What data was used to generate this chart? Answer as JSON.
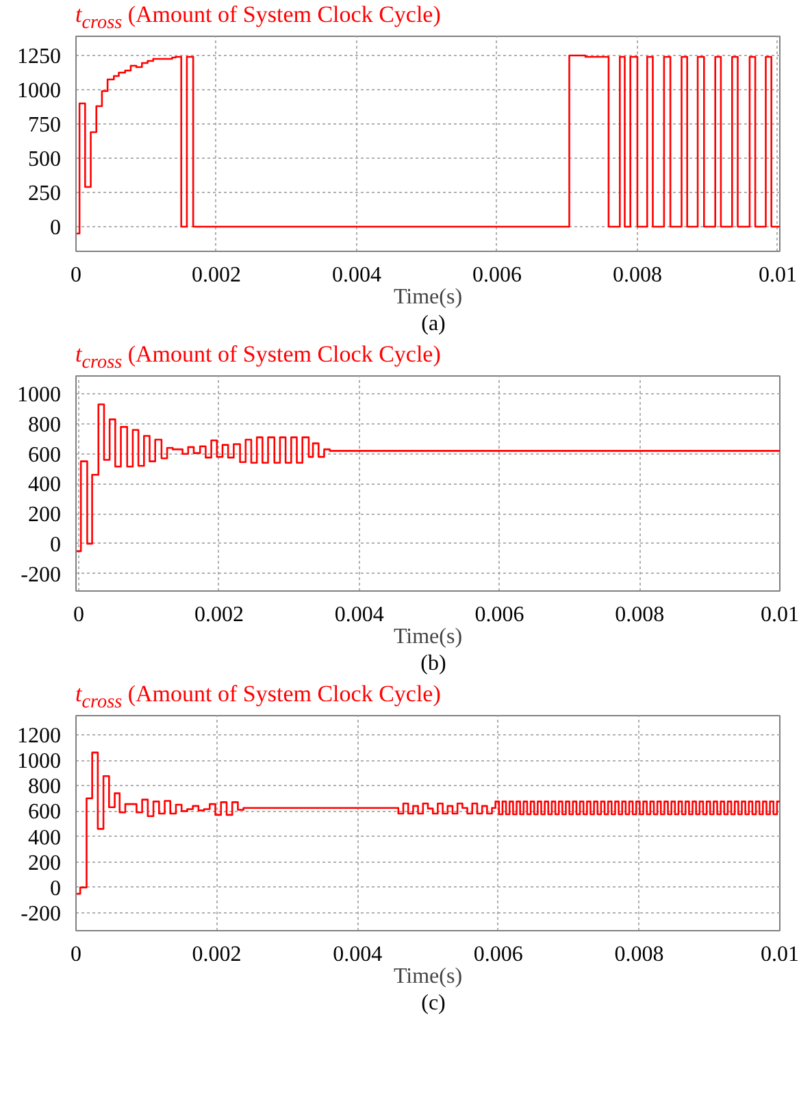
{
  "chart_data": [
    {
      "type": "step",
      "title": "t$_{cross}$ (Amount of System Clock Cycle)",
      "xlabel": "Time(s)",
      "annotations": [
        "(a)"
      ],
      "xlim": [
        0,
        0.01003
      ],
      "ylim": [
        -180,
        1390
      ],
      "xticks": [
        0,
        0.002,
        0.004,
        0.006,
        0.008,
        0.01
      ],
      "yticks": [
        0,
        250,
        500,
        750,
        1000,
        1250
      ],
      "grid": true,
      "series": [
        {
          "color": "#ff0000",
          "x": [
            0,
            5e-05,
            0.00013,
            0.00021,
            0.00029,
            0.00037,
            0.00045,
            0.00054,
            0.00061,
            0.0007,
            0.00078,
            0.00086,
            0.00094,
            0.00102,
            0.0011,
            0.00137,
            0.00142,
            0.0015,
            0.00158,
            0.00167,
            0.00703,
            0.00726,
            0.00759,
            0.00775,
            0.00782,
            0.0079,
            0.008,
            0.00814,
            0.00822,
            0.00838,
            0.00847,
            0.00863,
            0.00871,
            0.00886,
            0.00895,
            0.00911,
            0.00919,
            0.00935,
            0.00943,
            0.0096,
            0.00968,
            0.00983,
            0.00991,
            0.01003
          ],
          "values": [
            -50,
            900,
            290,
            690,
            880,
            990,
            1075,
            1100,
            1125,
            1140,
            1175,
            1165,
            1195,
            1210,
            1225,
            1235,
            1240,
            0,
            1240,
            0,
            1250,
            1240,
            0,
            1240,
            0,
            1240,
            0,
            1240,
            0,
            1240,
            0,
            1240,
            0,
            1240,
            0,
            1240,
            0,
            1240,
            0,
            1240,
            0,
            1240,
            0,
            0
          ]
        }
      ]
    },
    {
      "type": "step",
      "title": "t$_{cross}$ (Amount of System Clock Cycle)",
      "xlabel": "Time(s)",
      "annotations": [
        "(b)"
      ],
      "xlim": [
        -4e-05,
        0.01
      ],
      "ylim": [
        -316,
        1120
      ],
      "xticks": [
        0,
        0.002,
        0.004,
        0.006,
        0.008,
        0.01
      ],
      "yticks": [
        -200,
        0,
        200,
        400,
        600,
        800,
        1000
      ],
      "grid": true,
      "series": [
        {
          "color": "#ff0000",
          "x": [
            -4e-05,
            3e-05,
            0.00012,
            0.00019,
            0.00028,
            0.00036,
            0.00044,
            0.00052,
            0.0006,
            0.00069,
            0.00077,
            0.00085,
            0.00093,
            0.00101,
            0.00109,
            0.00118,
            0.00126,
            0.00134,
            0.00148,
            0.00156,
            0.00164,
            0.00173,
            0.00181,
            0.00189,
            0.00197,
            0.00205,
            0.00213,
            0.00221,
            0.0023,
            0.00238,
            0.00246,
            0.00254,
            0.00262,
            0.0027,
            0.00279,
            0.00287,
            0.00295,
            0.00303,
            0.00311,
            0.00319,
            0.00328,
            0.00334,
            0.00342,
            0.0035,
            0.00358,
            0.01
          ],
          "values": [
            -50,
            550,
            0,
            460,
            930,
            560,
            830,
            515,
            780,
            515,
            760,
            520,
            720,
            550,
            695,
            570,
            640,
            630,
            600,
            645,
            605,
            650,
            575,
            690,
            580,
            660,
            575,
            665,
            545,
            695,
            540,
            710,
            540,
            710,
            540,
            710,
            540,
            710,
            540,
            710,
            580,
            670,
            580,
            630,
            620,
            620
          ]
        }
      ]
    },
    {
      "type": "step",
      "title": "t$_{cross}$ (Amount of System Clock Cycle)",
      "xlabel": "Time(s)",
      "annotations": [
        "(c)"
      ],
      "xlim": [
        0,
        0.01
      ],
      "ylim": [
        -340,
        1350
      ],
      "xticks": [
        0,
        0.002,
        0.004,
        0.006,
        0.008,
        0.01
      ],
      "yticks": [
        -200,
        0,
        200,
        400,
        600,
        800,
        1000,
        1200
      ],
      "grid": true,
      "series": [
        {
          "color": "#ff0000",
          "x": [
            0,
            6e-05,
            0.00015,
            0.00023,
            0.00031,
            0.00039,
            0.00047,
            0.00055,
            0.00062,
            0.0007,
            0.00086,
            0.00094,
            0.00102,
            0.0011,
            0.00118,
            0.00126,
            0.00134,
            0.00142,
            0.0015,
            0.00158,
            0.00166,
            0.00174,
            0.00182,
            0.0019,
            0.00198,
            0.00206,
            0.00214,
            0.00222,
            0.0023,
            0.00238,
            0.00458,
            0.00465,
            0.00472,
            0.00479,
            0.00486,
            0.00493,
            0.005,
            0.00507,
            0.00514,
            0.00521,
            0.00528,
            0.00535,
            0.00542,
            0.00549,
            0.00556,
            0.00563,
            0.0057,
            0.00577,
            0.00584,
            0.00591,
            0.00596,
            0.00601,
            0.00606,
            0.00611,
            0.00616,
            0.00621,
            0.00626,
            0.00631,
            0.00636,
            0.00641,
            0.00646,
            0.00651,
            0.00656,
            0.00661,
            0.00666,
            0.00671,
            0.00676,
            0.00681,
            0.00686,
            0.00691,
            0.00696,
            0.00701,
            0.00706,
            0.00711,
            0.00716,
            0.00721,
            0.00726,
            0.00731,
            0.00736,
            0.00741,
            0.00746,
            0.00751,
            0.00756,
            0.00761,
            0.00766,
            0.00771,
            0.00776,
            0.00781,
            0.00786,
            0.00791,
            0.00796,
            0.00801,
            0.00806,
            0.00811,
            0.00816,
            0.00821,
            0.00826,
            0.00831,
            0.00836,
            0.00841,
            0.00846,
            0.00851,
            0.00856,
            0.00861,
            0.00866,
            0.00871,
            0.00876,
            0.00881,
            0.00886,
            0.00891,
            0.00896,
            0.00901,
            0.00906,
            0.00911,
            0.00916,
            0.00921,
            0.00926,
            0.00931,
            0.00936,
            0.00941,
            0.00946,
            0.00951,
            0.00956,
            0.00961,
            0.00966,
            0.00971,
            0.00976,
            0.00981,
            0.00986,
            0.00991,
            0.00996,
            0.01
          ],
          "values": [
            -50,
            0,
            700,
            1060,
            460,
            875,
            630,
            740,
            590,
            655,
            590,
            690,
            560,
            675,
            580,
            680,
            580,
            650,
            600,
            615,
            640,
            605,
            615,
            655,
            570,
            670,
            570,
            670,
            610,
            625,
            580,
            660,
            580,
            640,
            580,
            660,
            620,
            580,
            660,
            580,
            640,
            580,
            660,
            625,
            580,
            660,
            580,
            640,
            580,
            625,
            675,
            575,
            675,
            575,
            675,
            575,
            675,
            575,
            675,
            575,
            675,
            575,
            675,
            575,
            675,
            575,
            675,
            575,
            675,
            575,
            675,
            575,
            675,
            575,
            675,
            575,
            675,
            575,
            675,
            575,
            675,
            575,
            675,
            575,
            675,
            575,
            675,
            575,
            675,
            575,
            675,
            575,
            675,
            575,
            675,
            575,
            675,
            575,
            675,
            575,
            675,
            575,
            675,
            575,
            675,
            575,
            675,
            575,
            675,
            575,
            675,
            575,
            675,
            575,
            675,
            575,
            675,
            575,
            675,
            575,
            675,
            575,
            675,
            575,
            675,
            575,
            675,
            575,
            675,
            575,
            675,
            675
          ]
        }
      ]
    }
  ]
}
